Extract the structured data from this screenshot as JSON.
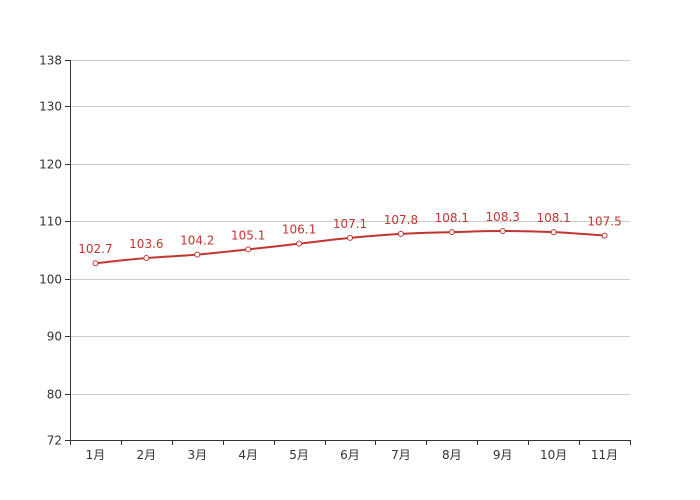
{
  "colors": {
    "series": "#c23531",
    "grid": "#cccccc",
    "axis": "#333333",
    "background": "#ffffff"
  },
  "chart_data": {
    "type": "line",
    "title": "",
    "xlabel": "",
    "ylabel": "",
    "categories": [
      "1月",
      "2月",
      "3月",
      "4月",
      "5月",
      "6月",
      "7月",
      "8月",
      "9月",
      "10月",
      "11月"
    ],
    "series": [
      {
        "values": [
          102.7,
          103.6,
          104.2,
          105.1,
          106.1,
          107.1,
          107.8,
          108.1,
          108.3,
          108.1,
          107.5
        ],
        "color": "#c23531",
        "smooth": true,
        "show_data_labels": true,
        "marker": "hollow-circle"
      }
    ],
    "ylim": [
      72,
      138
    ],
    "yticks": [
      72,
      80,
      90,
      100,
      110,
      120,
      130,
      138
    ],
    "grid": true,
    "legend": "none"
  }
}
